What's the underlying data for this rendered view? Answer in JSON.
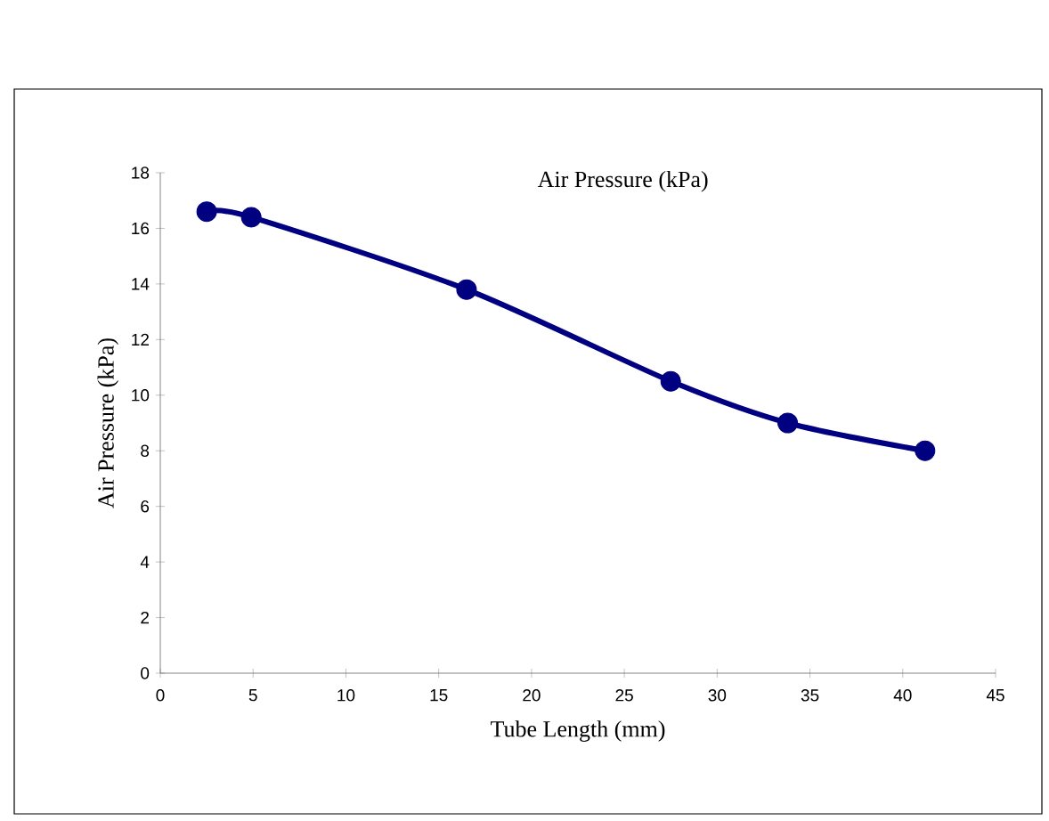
{
  "chart_data": {
    "type": "line",
    "title": "Air Pressure (kPa)",
    "xlabel": "Tube Length (mm)",
    "ylabel": "Air Pressure (kPa)",
    "x": [
      2.5,
      4.9,
      16.5,
      27.5,
      33.8,
      41.2
    ],
    "series": [
      {
        "color": "#000080",
        "values": [
          16.6,
          16.4,
          13.8,
          10.5,
          9.0,
          8.0
        ]
      }
    ],
    "xlim": [
      0,
      45
    ],
    "xticks": [
      0,
      5,
      10,
      15,
      20,
      25,
      30,
      35,
      40,
      45
    ],
    "ylim": [
      0,
      18
    ],
    "yticks": [
      0,
      2,
      4,
      6,
      8,
      10,
      12,
      14,
      16,
      18
    ],
    "grid": false,
    "marker": "circle",
    "line_style": "solid"
  }
}
